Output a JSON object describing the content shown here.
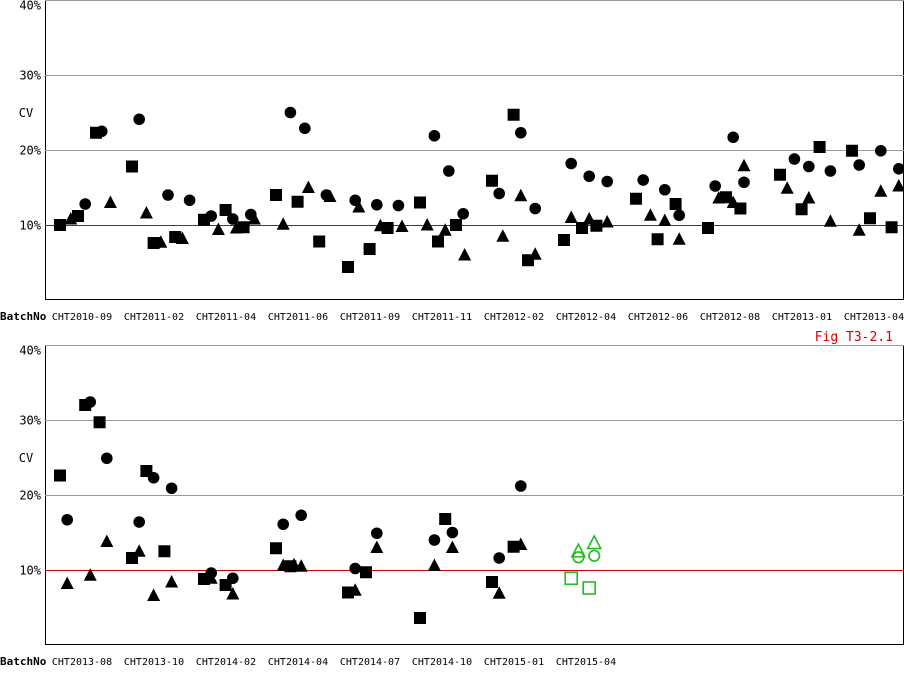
{
  "figure_label": "Fig T3-2.1",
  "colors": {
    "refline": "#d00000",
    "grid": "#999999",
    "current": "#22bb22",
    "marker": "#000000"
  },
  "chart_data": [
    {
      "type": "scatter",
      "title": "",
      "ylabel": "CV",
      "xlabel": "BatchNo",
      "ylim": [
        0,
        40
      ],
      "yticks": [
        10,
        20,
        30,
        40
      ],
      "ytick_labels": [
        "10%",
        "20%",
        "30%",
        "40%"
      ],
      "reference_line": 10,
      "categories": [
        "CHT2010-09",
        "CHT2011-02",
        "CHT2011-04",
        "CHT2011-06",
        "CHT2011-09",
        "CHT2011-11",
        "CHT2012-02",
        "CHT2012-04",
        "CHT2012-06",
        "CHT2012-08",
        "CHT2013-01",
        "CHT2013-04"
      ],
      "points": [
        [
          "square",
          0,
          10.0
        ],
        [
          "triangle",
          0.15,
          10.8
        ],
        [
          "square",
          0.25,
          11.2
        ],
        [
          "circle",
          0.35,
          12.8
        ],
        [
          "square",
          0.5,
          22.3
        ],
        [
          "circle",
          0.58,
          22.5
        ],
        [
          "triangle",
          0.7,
          13.0
        ],
        [
          "square",
          1,
          17.8
        ],
        [
          "circle",
          1.1,
          24.1
        ],
        [
          "triangle",
          1.2,
          11.6
        ],
        [
          "square",
          1.3,
          7.6
        ],
        [
          "triangle",
          1.4,
          7.7
        ],
        [
          "circle",
          1.5,
          14.0
        ],
        [
          "square",
          1.6,
          8.4
        ],
        [
          "triangle",
          1.7,
          8.2
        ],
        [
          "circle",
          1.8,
          13.3
        ],
        [
          "square",
          2,
          10.7
        ],
        [
          "circle",
          2.1,
          11.2
        ],
        [
          "triangle",
          2.2,
          9.4
        ],
        [
          "square",
          2.3,
          12.0
        ],
        [
          "circle",
          2.4,
          10.8
        ],
        [
          "triangle",
          2.45,
          9.6
        ],
        [
          "square",
          2.55,
          9.7
        ],
        [
          "circle",
          2.65,
          11.4
        ],
        [
          "triangle",
          2.7,
          10.8
        ],
        [
          "square",
          3,
          14.0
        ],
        [
          "triangle",
          3.1,
          10.1
        ],
        [
          "circle",
          3.2,
          25.0
        ],
        [
          "square",
          3.3,
          13.1
        ],
        [
          "circle",
          3.4,
          22.9
        ],
        [
          "triangle",
          3.45,
          15.0
        ],
        [
          "square",
          3.6,
          7.8
        ],
        [
          "circle",
          3.7,
          14.0
        ],
        [
          "triangle",
          3.75,
          13.8
        ],
        [
          "square",
          4,
          4.4
        ],
        [
          "circle",
          4.1,
          13.3
        ],
        [
          "triangle",
          4.15,
          12.4
        ],
        [
          "square",
          4.3,
          6.8
        ],
        [
          "circle",
          4.4,
          12.7
        ],
        [
          "triangle",
          4.45,
          9.9
        ],
        [
          "square",
          4.55,
          9.6
        ],
        [
          "circle",
          4.7,
          12.6
        ],
        [
          "triangle",
          4.75,
          9.8
        ],
        [
          "square",
          5,
          13.0
        ],
        [
          "triangle",
          5.1,
          10.0
        ],
        [
          "circle",
          5.2,
          21.9
        ],
        [
          "square",
          5.25,
          7.8
        ],
        [
          "triangle",
          5.35,
          9.3
        ],
        [
          "circle",
          5.4,
          17.2
        ],
        [
          "square",
          5.5,
          10.0
        ],
        [
          "circle",
          5.6,
          11.5
        ],
        [
          "triangle",
          5.62,
          6.0
        ],
        [
          "square",
          6,
          15.9
        ],
        [
          "circle",
          6.1,
          14.2
        ],
        [
          "triangle",
          6.15,
          8.5
        ],
        [
          "square",
          6.3,
          24.7
        ],
        [
          "circle",
          6.4,
          22.3
        ],
        [
          "triangle",
          6.4,
          13.9
        ],
        [
          "square",
          6.5,
          5.3
        ],
        [
          "circle",
          6.6,
          12.2
        ],
        [
          "triangle",
          6.6,
          6.1
        ],
        [
          "square",
          7,
          8.0
        ],
        [
          "triangle",
          7.1,
          11.0
        ],
        [
          "circle",
          7.1,
          18.2
        ],
        [
          "square",
          7.25,
          9.6
        ],
        [
          "circle",
          7.35,
          16.5
        ],
        [
          "triangle",
          7.35,
          10.8
        ],
        [
          "square",
          7.45,
          9.9
        ],
        [
          "circle",
          7.6,
          15.8
        ],
        [
          "triangle",
          7.6,
          10.4
        ],
        [
          "square",
          8,
          13.5
        ],
        [
          "circle",
          8.1,
          16.0
        ],
        [
          "triangle",
          8.2,
          11.3
        ],
        [
          "square",
          8.3,
          8.1
        ],
        [
          "circle",
          8.4,
          14.7
        ],
        [
          "triangle",
          8.4,
          10.6
        ],
        [
          "square",
          8.55,
          12.8
        ],
        [
          "circle",
          8.6,
          11.3
        ],
        [
          "triangle",
          8.6,
          8.1
        ],
        [
          "square",
          9,
          9.6
        ],
        [
          "circle",
          9.1,
          15.2
        ],
        [
          "triangle",
          9.15,
          13.6
        ],
        [
          "square",
          9.25,
          13.7
        ],
        [
          "triangle",
          9.35,
          13.0
        ],
        [
          "circle",
          9.35,
          21.7
        ],
        [
          "square",
          9.45,
          12.2
        ],
        [
          "circle",
          9.5,
          15.7
        ],
        [
          "triangle",
          9.5,
          17.9
        ],
        [
          "square",
          10,
          16.7
        ],
        [
          "triangle",
          10.1,
          14.9
        ],
        [
          "circle",
          10.2,
          18.8
        ],
        [
          "square",
          10.3,
          12.1
        ],
        [
          "triangle",
          10.4,
          13.6
        ],
        [
          "circle",
          10.4,
          17.8
        ],
        [
          "square",
          10.55,
          20.4
        ],
        [
          "circle",
          10.7,
          17.2
        ],
        [
          "triangle",
          10.7,
          10.5
        ],
        [
          "square",
          11,
          19.9
        ],
        [
          "circle",
          11.1,
          18.0
        ],
        [
          "triangle",
          11.1,
          9.3
        ],
        [
          "square",
          11.25,
          10.9
        ],
        [
          "triangle",
          11.4,
          14.5
        ],
        [
          "circle",
          11.4,
          19.9
        ],
        [
          "square",
          11.55,
          9.7
        ],
        [
          "circle",
          11.65,
          17.5
        ],
        [
          "triangle",
          11.65,
          15.2
        ]
      ]
    },
    {
      "type": "scatter",
      "title": "",
      "ylabel": "CV",
      "xlabel": "BatchNo",
      "ylim": [
        0,
        40
      ],
      "yticks": [
        10,
        20,
        30,
        40
      ],
      "ytick_labels": [
        "10%",
        "20%",
        "30%",
        "40%"
      ],
      "reference_line": 10,
      "categories": [
        "CHT2013-08",
        "CHT2013-10",
        "CHT2014-02",
        "CHT2014-04",
        "CHT2014-07",
        "CHT2014-10",
        "CHT2015-01",
        "CHT2015-04"
      ],
      "points": [
        [
          "square",
          0,
          22.6
        ],
        [
          "circle",
          0.1,
          16.7
        ],
        [
          "triangle",
          0.1,
          8.2
        ],
        [
          "square",
          0.35,
          32.0
        ],
        [
          "circle",
          0.42,
          32.4
        ],
        [
          "triangle",
          0.42,
          9.3
        ],
        [
          "square",
          0.55,
          29.7
        ],
        [
          "circle",
          0.65,
          24.9
        ],
        [
          "triangle",
          0.65,
          13.8
        ],
        [
          "square",
          1,
          11.6
        ],
        [
          "circle",
          1.1,
          16.4
        ],
        [
          "triangle",
          1.1,
          12.5
        ],
        [
          "square",
          1.2,
          23.2
        ],
        [
          "circle",
          1.3,
          22.3
        ],
        [
          "triangle",
          1.3,
          6.6
        ],
        [
          "square",
          1.45,
          12.5
        ],
        [
          "circle",
          1.55,
          20.9
        ],
        [
          "triangle",
          1.55,
          8.4
        ],
        [
          "square",
          2,
          8.8
        ],
        [
          "circle",
          2.1,
          9.6
        ],
        [
          "triangle",
          2.1,
          8.9
        ],
        [
          "square",
          2.3,
          8.0
        ],
        [
          "circle",
          2.4,
          8.9
        ],
        [
          "triangle",
          2.4,
          6.8
        ],
        [
          "square",
          3,
          12.9
        ],
        [
          "circle",
          3.1,
          16.1
        ],
        [
          "triangle",
          3.1,
          10.6
        ],
        [
          "square",
          3.2,
          10.5
        ],
        [
          "triangle",
          3.25,
          10.7
        ],
        [
          "circle",
          3.35,
          17.3
        ],
        [
          "triangle",
          3.35,
          10.5
        ],
        [
          "square",
          4,
          7.0
        ],
        [
          "circle",
          4.1,
          10.2
        ],
        [
          "triangle",
          4.1,
          7.3
        ],
        [
          "square",
          4.25,
          9.7
        ],
        [
          "circle",
          4.4,
          14.9
        ],
        [
          "triangle",
          4.4,
          13.0
        ],
        [
          "square",
          5,
          3.6
        ],
        [
          "circle",
          5.2,
          14.0
        ],
        [
          "triangle",
          5.2,
          10.6
        ],
        [
          "square",
          5.35,
          16.8
        ],
        [
          "circle",
          5.45,
          15.0
        ],
        [
          "triangle",
          5.45,
          13.0
        ],
        [
          "square",
          6,
          8.4
        ],
        [
          "circle",
          6.1,
          11.6
        ],
        [
          "triangle",
          6.1,
          6.9
        ],
        [
          "square",
          6.3,
          13.1
        ],
        [
          "circle",
          6.4,
          21.2
        ],
        [
          "triangle",
          6.4,
          13.4
        ]
      ],
      "current_series": {
        "name": "",
        "points": [
          [
            "square",
            7.1,
            8.9
          ],
          [
            "circle",
            7.2,
            11.7
          ],
          [
            "triangle",
            7.2,
            12.5
          ],
          [
            "square",
            7.35,
            7.6
          ],
          [
            "circle",
            7.42,
            11.9
          ],
          [
            "triangle",
            7.42,
            13.6
          ]
        ]
      }
    }
  ]
}
